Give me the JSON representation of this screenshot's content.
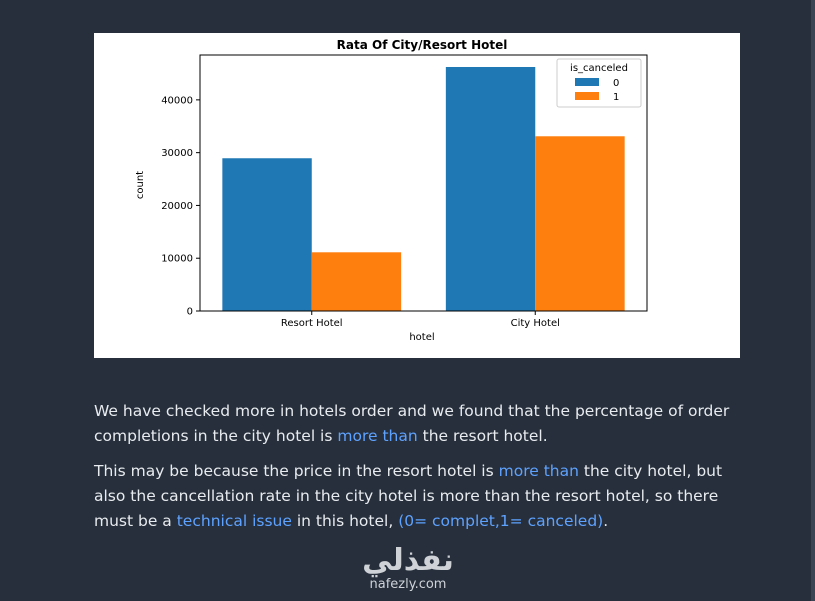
{
  "chart_data": {
    "type": "bar",
    "title": "Rata Of City/Resort Hotel",
    "xlabel": "hotel",
    "ylabel": "count",
    "categories": [
      "Resort Hotel",
      "City Hotel"
    ],
    "series": [
      {
        "name": "0",
        "values": [
          28938,
          46228
        ],
        "color": "#1f77b4"
      },
      {
        "name": "1",
        "values": [
          11122,
          33102
        ],
        "color": "#ff7f0e"
      }
    ],
    "ylim": [
      0,
      48500
    ],
    "yticks": [
      0,
      10000,
      20000,
      30000,
      40000
    ],
    "legend": {
      "title": "is_canceled",
      "placement": "top-right"
    },
    "grid": false
  },
  "text": {
    "p1": {
      "part1": "We have checked more in hotels order and we found that the percentage of order completions in the city hotel is ",
      "link1": "more than",
      "part2": " the resort hotel."
    },
    "p2": {
      "part1": "This may be because the price in the resort hotel is ",
      "link1": "more than",
      "part2": " the city hotel, but also the cancellation rate in the city hotel is more than the resort hotel, so there must be a ",
      "link2": "technical issue",
      "part3": " in this hotel, ",
      "link3": "(0= complet,1= canceled)",
      "part4": "."
    }
  },
  "watermark": {
    "logo_text": "نفذلي",
    "url": "nafezly.com"
  }
}
